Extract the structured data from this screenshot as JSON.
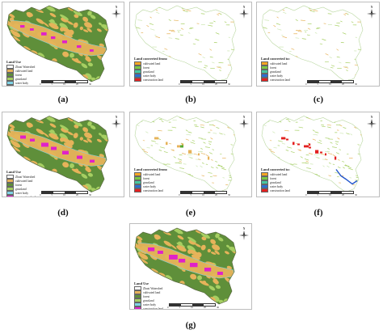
{
  "colors": {
    "cultivated": "#e6b35a",
    "forest": "#5f8f3a",
    "grassland": "#a6cf62",
    "water": "#7fd3e6",
    "construction": "#e021c9",
    "outline": "#5a6a40",
    "red_change": "#e32020",
    "blue_change": "#2255cc"
  },
  "panels": [
    {
      "id": "a",
      "caption": "(a)",
      "kind": "landuse",
      "legend": {
        "title": "Land Use",
        "items": [
          "Zhuzi Watershed",
          "cultivated land",
          "forest",
          "grassland",
          "water body",
          "construction land"
        ]
      },
      "scale": [
        "0",
        "5",
        "10",
        "20",
        "30"
      ]
    },
    {
      "id": "b",
      "caption": "(b)",
      "kind": "change_from",
      "legend": {
        "title": "Land converted from:",
        "items": [
          "cultivated land",
          "forest",
          "grassland",
          "water body",
          "construction land"
        ]
      },
      "scale": [
        "0",
        "5",
        "10",
        "20",
        "30"
      ]
    },
    {
      "id": "c",
      "caption": "(c)",
      "kind": "change_to",
      "legend": {
        "title": "Land converted to:",
        "items": [
          "cultivated land",
          "forest",
          "grassland",
          "water body",
          "construction land"
        ]
      },
      "scale": [
        "0",
        "5",
        "10",
        "20",
        "30"
      ]
    },
    {
      "id": "d",
      "caption": "(d)",
      "kind": "landuse",
      "legend": {
        "title": "Land Use",
        "items": [
          "Zhuzi Watershed",
          "cultivated land",
          "forest",
          "grassland",
          "water body",
          "construction land"
        ]
      },
      "scale": [
        "0",
        "5",
        "10",
        "20",
        "30"
      ]
    },
    {
      "id": "e",
      "caption": "(e)",
      "kind": "change_from",
      "legend": {
        "title": "Land converted from:",
        "items": [
          "cultivated land",
          "forest",
          "grassland",
          "water body",
          "construction land"
        ]
      },
      "scale": [
        "0",
        "5",
        "10",
        "20",
        "30"
      ]
    },
    {
      "id": "f",
      "caption": "(f)",
      "kind": "change_to",
      "legend": {
        "title": "Land converted to:",
        "items": [
          "cultivated land",
          "forest",
          "grassland",
          "water body",
          "construction land"
        ]
      },
      "scale": [
        "0",
        "5",
        "10",
        "20",
        "30"
      ]
    },
    {
      "id": "g",
      "caption": "(g)",
      "kind": "landuse",
      "legend": {
        "title": "Land Use",
        "items": [
          "Zhuzi Watershed",
          "cultivated land",
          "forest",
          "grassland",
          "water body",
          "construction land"
        ]
      },
      "scale": [
        "0",
        "5",
        "10",
        "20",
        "30"
      ]
    }
  ],
  "north_label": "N"
}
